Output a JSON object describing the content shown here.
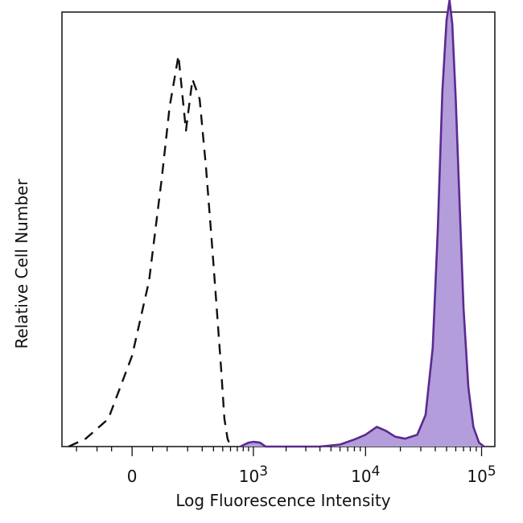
{
  "chart_data": {
    "type": "area",
    "title": "",
    "xlabel": "Log Fluorescence Intensity",
    "ylabel": "Relative Cell Number",
    "x_scale": "biexponential",
    "xlim": [
      -300,
      130000
    ],
    "ylim": [
      0,
      1.1
    ],
    "x_ticks": [
      {
        "value": 0,
        "base": "0",
        "exp": ""
      },
      {
        "value": 1000,
        "base": "10",
        "exp": "3"
      },
      {
        "value": 10000,
        "base": "10",
        "exp": "4"
      },
      {
        "value": 100000,
        "base": "10",
        "exp": "5"
      }
    ],
    "legend": "none",
    "grid": false,
    "series": [
      {
        "style": "dashed",
        "color": "#111111",
        "fill": "none",
        "x": [
          -250,
          -150,
          -60,
          0,
          40,
          80,
          110,
          150,
          190,
          230,
          280,
          330,
          380,
          430,
          480,
          520,
          560,
          600
        ],
        "y": [
          0.0,
          0.02,
          0.07,
          0.23,
          0.42,
          0.68,
          0.86,
          0.99,
          0.8,
          0.93,
          0.88,
          0.71,
          0.53,
          0.36,
          0.2,
          0.07,
          0.02,
          0.0
        ]
      },
      {
        "style": "solid",
        "color": "#5b2a90",
        "fill": "#b39ddb",
        "x": [
          750,
          900,
          1000,
          1150,
          1300,
          4000,
          6000,
          8000,
          10000,
          12500,
          15000,
          18000,
          22000,
          28000,
          33000,
          38000,
          42000,
          46000,
          50000,
          53000,
          56000,
          60000,
          65000,
          70000,
          77000,
          85000,
          95000,
          105000
        ],
        "y": [
          0.0,
          0.01,
          0.012,
          0.01,
          0.0,
          0.0,
          0.005,
          0.018,
          0.03,
          0.05,
          0.04,
          0.025,
          0.02,
          0.03,
          0.08,
          0.25,
          0.55,
          0.9,
          1.08,
          1.13,
          1.07,
          0.88,
          0.6,
          0.35,
          0.15,
          0.05,
          0.01,
          0.0
        ]
      }
    ]
  }
}
